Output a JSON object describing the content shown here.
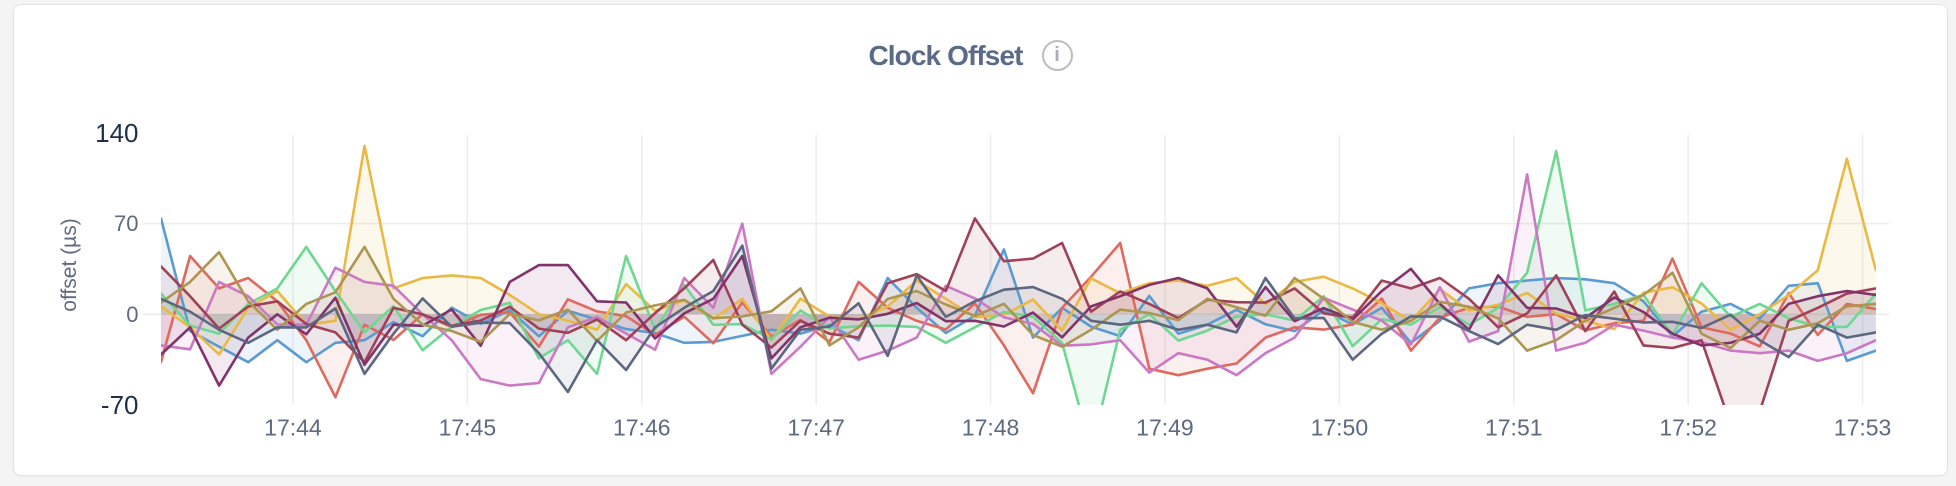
{
  "page": {
    "background": "#f4f4f5",
    "card_background": "#ffffff",
    "card_border": "#e3e3e4"
  },
  "header": {
    "title": "Clock Offset",
    "info_icon_glyph": "i"
  },
  "chart_data": {
    "type": "line",
    "title": "Clock Offset",
    "xlabel": "",
    "ylabel": "offset (µs)",
    "ylim": [
      -70,
      140
    ],
    "y_ticks": [
      {
        "value": 140,
        "label": "140",
        "emphasis": true
      },
      {
        "value": 70,
        "label": "70",
        "emphasis": false
      },
      {
        "value": 0,
        "label": "0",
        "emphasis": false
      },
      {
        "value": -70,
        "label": "-70",
        "emphasis": true
      }
    ],
    "x_ticks": [
      "17:44",
      "17:45",
      "17:46",
      "17:47",
      "17:48",
      "17:49",
      "17:50",
      "17:51",
      "17:52",
      "17:53"
    ],
    "x_tick_first_index": 4.54,
    "x_tick_step_samples": 6,
    "sample_interval_seconds": 10,
    "grid": true,
    "legend": false,
    "area_baseline": 0,
    "area_opacity": 0.1,
    "series": [
      {
        "name": "blue",
        "color": "#5b9bd1",
        "values": [
          74.0,
          -13.0,
          -25.0,
          -37.0,
          -20.0,
          -37.0,
          -22.0,
          -20.0,
          -6.1,
          -16.9,
          5.2,
          -7.3,
          3.1,
          -17.0,
          2.7,
          -4.0,
          -11.4,
          -14.5,
          -22.0,
          -21.3,
          -16.7,
          -11.9,
          -14.9,
          -8.3,
          -20.0,
          28.0,
          5.0,
          -14.4,
          -1.1,
          50.0,
          -18.0,
          5.0,
          -9.5,
          -16.8,
          14.2,
          -15.0,
          -8.0,
          3.5,
          -7.7,
          -13.0,
          3.2,
          -7.9,
          5.0,
          -22.0,
          -5.0,
          20.0,
          24.0,
          26.0,
          28.0,
          27.0,
          24.0,
          10.0,
          -17.0,
          2.0,
          8.0,
          -3.4,
          22.0,
          24.0,
          -36.0,
          -28.0
        ]
      },
      {
        "name": "red",
        "color": "#e0695f",
        "values": [
          -37.0,
          45.0,
          20.0,
          28.0,
          10.0,
          -20.0,
          -64.0,
          -8.0,
          -19.8,
          0.1,
          -9.8,
          -0.4,
          1.5,
          -25.0,
          11.6,
          2.2,
          -1.5,
          -15.9,
          -1.8,
          -22.4,
          9.2,
          -17.4,
          -4.3,
          -21.5,
          25.0,
          5.0,
          -5.0,
          -11.7,
          8.5,
          -24.0,
          -61.0,
          5.0,
          29.0,
          55.0,
          -42.0,
          -47.0,
          -42.0,
          -38.0,
          -18.0,
          -10.0,
          -11.8,
          -7.9,
          12.1,
          -28.0,
          -2.5,
          5.0,
          6.0,
          -1.9,
          0.1,
          -12.4,
          -6.9,
          -5.0,
          43.0,
          -10.0,
          -14.9,
          -24.8,
          16.4,
          -15.9,
          8.0,
          4.0
        ]
      },
      {
        "name": "gold",
        "color": "#eab944",
        "values": [
          6.0,
          -10.0,
          -31.0,
          5.0,
          18.0,
          -8.0,
          -5.0,
          130.0,
          20.0,
          28.0,
          30.0,
          28.0,
          15.0,
          0.1,
          -4.9,
          -12.0,
          23.3,
          2.7,
          10.8,
          -3.5,
          11.9,
          -20.0,
          12.1,
          -1.8,
          -3.7,
          6.1,
          26.0,
          12.0,
          -2.2,
          -0.5,
          11.4,
          -12.5,
          27.8,
          16.2,
          24.0,
          26.0,
          22.0,
          28.0,
          8.0,
          25.0,
          29.0,
          20.0,
          8.6,
          -5.3,
          19.4,
          3.0,
          7.3,
          16.5,
          0.6,
          -4.9,
          -11.4,
          16.6,
          20.8,
          8.3,
          -12.0,
          0.0,
          15.0,
          34.0,
          120.0,
          34.0
        ]
      },
      {
        "name": "green",
        "color": "#6fd792",
        "values": [
          16.0,
          -8.7,
          -15.0,
          8.0,
          20.0,
          52.0,
          18.0,
          -14.0,
          6.3,
          -27.8,
          -9.5,
          3.3,
          8.8,
          -34.0,
          -20.0,
          -46.0,
          45.0,
          -12.0,
          22.8,
          -8.1,
          -7.6,
          -19.4,
          2.9,
          -11.0,
          -9.2,
          -8.7,
          -9.7,
          -22.0,
          -10.0,
          1.8,
          -1.9,
          -22.0,
          -105.0,
          -12.0,
          0.1,
          -20.3,
          -12.6,
          -1.6,
          0.1,
          -4.9,
          14.0,
          -24.6,
          -3.8,
          -8.0,
          5.6,
          -8.0,
          5.0,
          32.0,
          126.0,
          3.0,
          8.0,
          15.0,
          -15.9,
          24.0,
          -2.0,
          8.0,
          -3.1,
          -9.7,
          -9.7,
          16.0
        ]
      },
      {
        "name": "orchid",
        "color": "#cb79c5",
        "values": [
          -24.0,
          -27.0,
          25.0,
          14.0,
          -7.9,
          -8.0,
          36.0,
          25.0,
          22.0,
          0.0,
          -20.0,
          -50.0,
          -55.0,
          -53.0,
          -10.0,
          -2.1,
          -14.8,
          -27.3,
          28.0,
          5.0,
          70.0,
          -46.0,
          -25.0,
          -2.1,
          -35.0,
          -28.0,
          -18.0,
          22.0,
          12.3,
          -2.3,
          -7.4,
          -24.2,
          -23.2,
          -20.0,
          -45.0,
          -30.0,
          -35.0,
          -47.0,
          -30.0,
          -18.0,
          12.7,
          3.6,
          -4.8,
          -23.4,
          21.0,
          -21.1,
          -13.0,
          108.0,
          -28.0,
          -22.0,
          -8.0,
          -12.6,
          -18.0,
          -21.5,
          -28.0,
          -30.0,
          -28.0,
          -36.0,
          -30.0,
          -20.0
        ]
      },
      {
        "name": "maroon",
        "color": "#a04158",
        "values": [
          37.0,
          14.0,
          -11.0,
          6.0,
          10.0,
          -7.5,
          -14.0,
          -37.0,
          5.0,
          -0.1,
          -8.9,
          -4.9,
          5.8,
          -11.0,
          -14.3,
          -4.1,
          -20.0,
          0.9,
          20.0,
          42.0,
          -8.0,
          -25.7,
          -5.0,
          -15.0,
          -18.0,
          24.0,
          31.0,
          18.0,
          74.0,
          41.0,
          43.0,
          55.0,
          2.0,
          17.7,
          8.0,
          -2.9,
          11.3,
          9.3,
          9.0,
          20.0,
          0.8,
          -2.6,
          26.0,
          20.0,
          28.0,
          12.0,
          -10.0,
          0.6,
          30.0,
          -13.0,
          17.6,
          -24.0,
          -26.0,
          -20.0,
          -85.0,
          -75.0,
          -5.0,
          5.0,
          16.0,
          20.0
        ]
      },
      {
        "name": "plum",
        "color": "#81336a",
        "values": [
          -31.0,
          -10.0,
          -55.0,
          -18.0,
          0.0,
          -15.4,
          12.8,
          -39.0,
          -8.0,
          -8.9,
          3.7,
          -24.2,
          25.0,
          38.0,
          38.0,
          10.0,
          9.1,
          -18.7,
          0.7,
          12.0,
          45.0,
          -34.0,
          -10.0,
          -2.6,
          -3.9,
          0.4,
          8.7,
          -5.3,
          -5.0,
          -9.4,
          1.3,
          -17.8,
          6.1,
          14.0,
          22.7,
          28.0,
          20.0,
          -9.5,
          21.0,
          -5.3,
          4.8,
          -4.0,
          18.0,
          35.0,
          8.0,
          -12.0,
          30.0,
          5.0,
          4.5,
          -2.8,
          13.0,
          1.8,
          -15.0,
          -24.0,
          -22.0,
          -15.0,
          8.0,
          14.0,
          18.0,
          15.0
        ]
      },
      {
        "name": "khaki",
        "color": "#ad9552",
        "values": [
          9.0,
          25.0,
          48.0,
          10.0,
          -12.0,
          8.0,
          17.0,
          52.0,
          12.0,
          -8.0,
          -12.9,
          -21.3,
          0.3,
          -4.7,
          3.6,
          -20.6,
          1.4,
          6.9,
          11.2,
          -3.0,
          -1.6,
          2.3,
          20.0,
          -24.0,
          -10.0,
          11.8,
          18.0,
          7.6,
          -1.2,
          8.1,
          -16.0,
          -25.0,
          -12.0,
          3.6,
          1.0,
          -4.5,
          12.0,
          5.4,
          -1.1,
          28.0,
          12.0,
          -5.9,
          -12.0,
          -5.0,
          9.6,
          5.9,
          -3.1,
          -28.0,
          -20.0,
          -5.0,
          5.0,
          15.0,
          32.0,
          -15.0,
          -26.0,
          -5.0,
          -12.0,
          -6.9,
          6.2,
          8.0
        ]
      },
      {
        "name": "slate",
        "color": "#5d6880",
        "values": [
          12.0,
          2.0,
          -12.0,
          -22.0,
          -10.0,
          -10.1,
          4.5,
          -46.0,
          -15.0,
          12.3,
          -9.6,
          -6.5,
          -6.8,
          -30.0,
          -60.0,
          -20.0,
          -43.0,
          -10.0,
          5.0,
          18.0,
          53.0,
          -42.0,
          -12.0,
          -9.5,
          8.5,
          -32.1,
          30.0,
          -2.0,
          10.0,
          19.0,
          21.0,
          12.0,
          -5.0,
          -8.0,
          -5.0,
          -12.0,
          -8.0,
          -14.0,
          28.0,
          -3.2,
          -2.8,
          -35.0,
          -15.0,
          -1.6,
          -1.8,
          -13.0,
          -23.0,
          -8.0,
          -12.0,
          -0.6,
          -3.4,
          -6.3,
          -5.8,
          -10.5,
          -0.3,
          -20.0,
          -33.0,
          -8.0,
          -18.0,
          -14.0
        ]
      }
    ]
  },
  "style": {
    "gridline": "#ececec",
    "axis_text": "#5d6a80",
    "axis_text_strong": "#1e2f4d",
    "title_color": "#5a6a87",
    "info_icon_border": "#bdbdbd",
    "info_icon_color": "#a6b0bc"
  }
}
